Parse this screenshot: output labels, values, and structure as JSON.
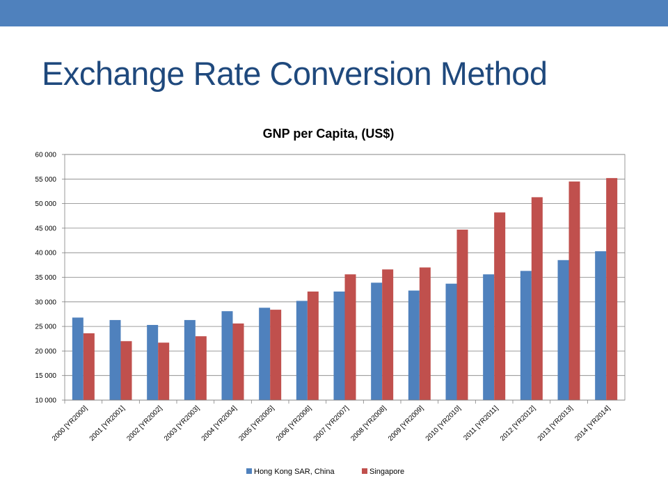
{
  "slide": {
    "title": "Exchange Rate Conversion Method",
    "band_color": "#4f81bd",
    "title_color": "#1f497d"
  },
  "chart_data": {
    "type": "bar",
    "title": "GNP per Capita, (US$)",
    "xlabel": "",
    "ylabel": "",
    "categories": [
      "2000 [YR2000]",
      "2001 [YR2001]",
      "2002 [YR2002]",
      "2003 [YR2003]",
      "2004 [YR2004]",
      "2005 [YR2005]",
      "2006 [YR2006]",
      "2007 [YR2007]",
      "2008 [YR2008]",
      "2009 [YR2009]",
      "2010 [YR2010]",
      "2011 [YR2011]",
      "2012 [YR2012]",
      "2013 [YR2013]",
      "2014 [YR2014]"
    ],
    "series": [
      {
        "name": "Hong Kong SAR, China",
        "color": "#4f81bd",
        "values": [
          26800,
          26300,
          25300,
          26300,
          28100,
          28800,
          30200,
          32100,
          33900,
          32300,
          33700,
          35600,
          36300,
          38500,
          40300
        ]
      },
      {
        "name": "Singapore",
        "color": "#c0504d",
        "values": [
          23600,
          22000,
          21700,
          23000,
          25600,
          28400,
          32100,
          35600,
          36600,
          37000,
          44700,
          48200,
          51300,
          54500,
          55200
        ]
      }
    ],
    "ylim": [
      10000,
      60000
    ],
    "yticks": [
      "10 000",
      "15 000",
      "20 000",
      "25 000",
      "30 000",
      "35 000",
      "40 000",
      "45 000",
      "50 000",
      "55 000",
      "60 000"
    ],
    "ytick_values": [
      10000,
      15000,
      20000,
      25000,
      30000,
      35000,
      40000,
      45000,
      50000,
      55000,
      60000
    ],
    "grid": true,
    "legend_position": "bottom"
  }
}
